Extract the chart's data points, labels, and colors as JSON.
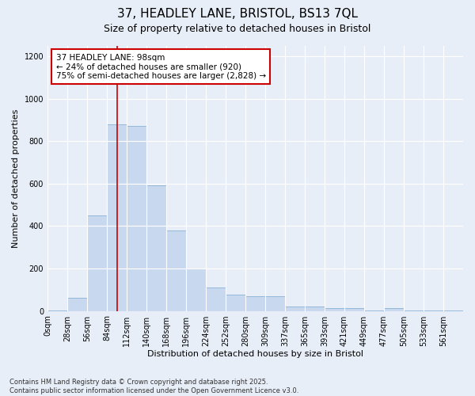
{
  "title_line1": "37, HEADLEY LANE, BRISTOL, BS13 7QL",
  "title_line2": "Size of property relative to detached houses in Bristol",
  "xlabel": "Distribution of detached houses by size in Bristol",
  "ylabel": "Number of detached properties",
  "bar_labels": [
    "0sqm",
    "28sqm",
    "56sqm",
    "84sqm",
    "112sqm",
    "140sqm",
    "168sqm",
    "196sqm",
    "224sqm",
    "252sqm",
    "280sqm",
    "309sqm",
    "337sqm",
    "365sqm",
    "393sqm",
    "421sqm",
    "449sqm",
    "477sqm",
    "505sqm",
    "533sqm",
    "561sqm"
  ],
  "bar_values": [
    3,
    60,
    450,
    880,
    870,
    590,
    380,
    200,
    110,
    75,
    70,
    70,
    20,
    20,
    15,
    15,
    3,
    15,
    3,
    3,
    3
  ],
  "bar_color": "#c8d8ee",
  "bar_edge_color": "#7aa8d0",
  "annotation_text": "37 HEADLEY LANE: 98sqm\n← 24% of detached houses are smaller (920)\n75% of semi-detached houses are larger (2,828) →",
  "annotation_box_color": "#ffffff",
  "annotation_box_edge": "#cc0000",
  "line_color": "#cc0000",
  "ylim": [
    0,
    1250
  ],
  "yticks": [
    0,
    200,
    400,
    600,
    800,
    1000,
    1200
  ],
  "background_color": "#e8eef7",
  "footer_text": "Contains HM Land Registry data © Crown copyright and database right 2025.\nContains public sector information licensed under the Open Government Licence v3.0.",
  "title_fontsize": 11,
  "subtitle_fontsize": 9,
  "axis_label_fontsize": 8,
  "tick_fontsize": 7,
  "annotation_fontsize": 7.5
}
